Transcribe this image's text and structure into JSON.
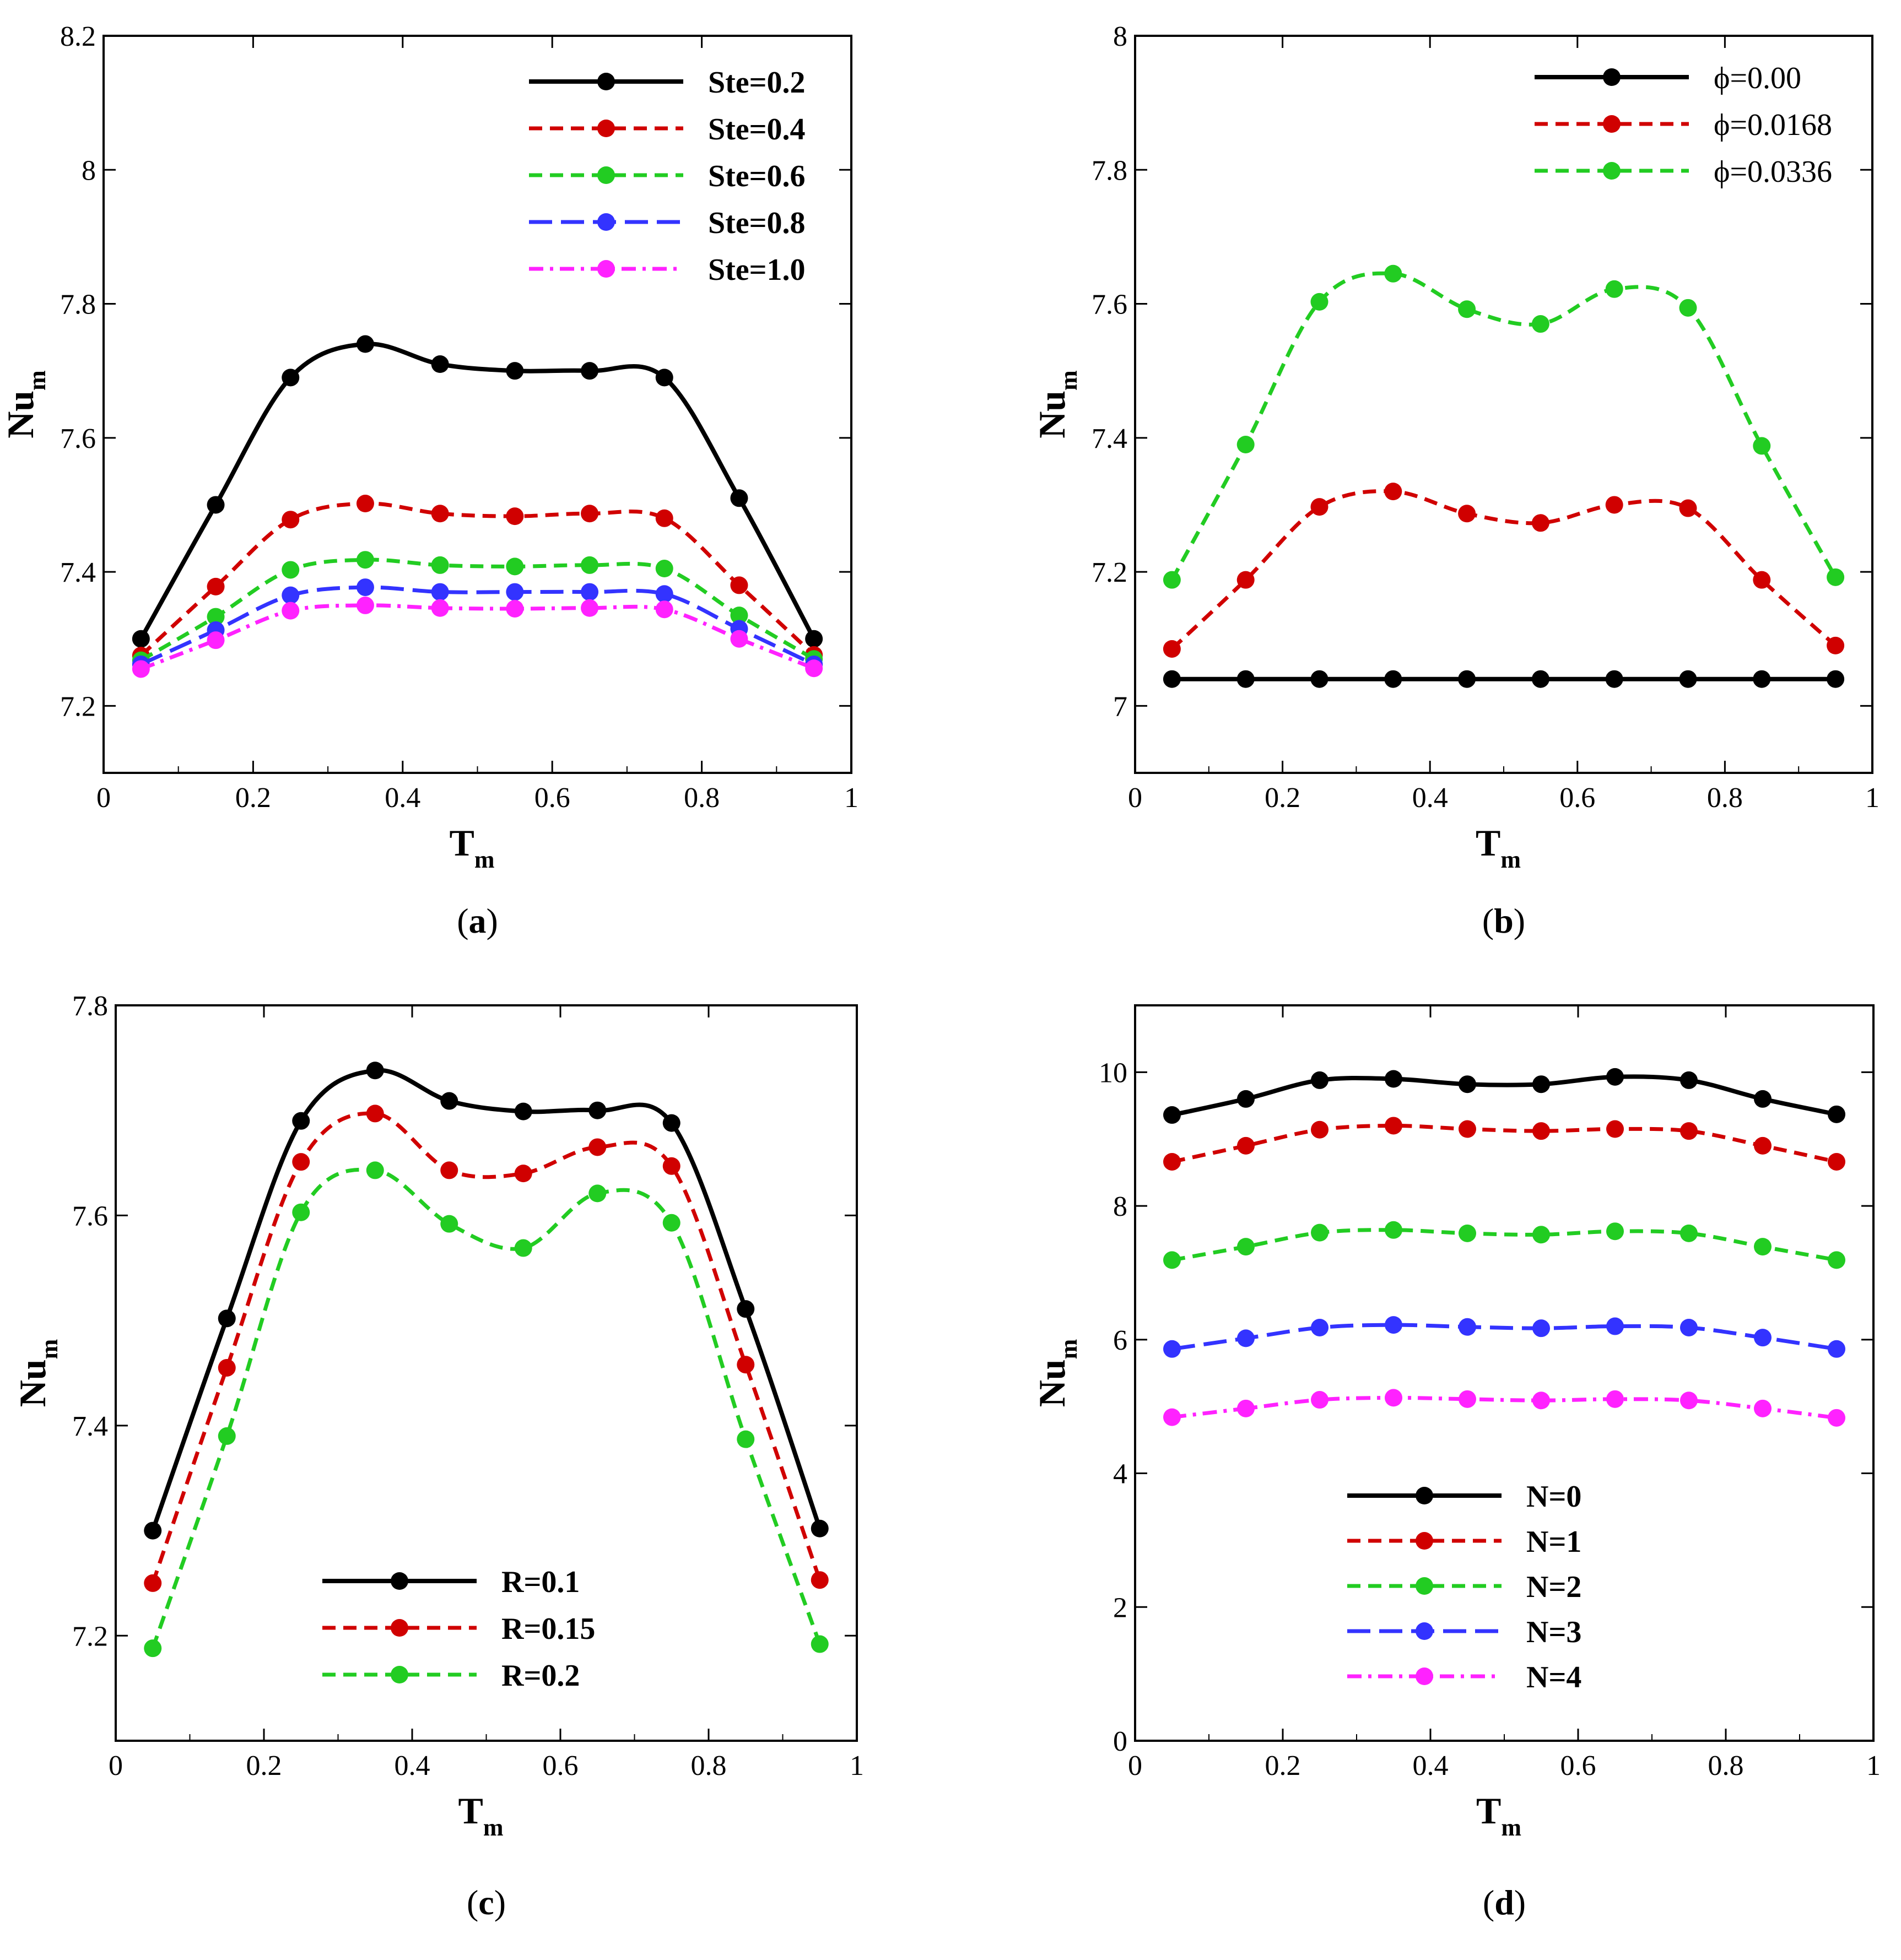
{
  "figure": {
    "colors": {
      "black": "#000000",
      "red": "#d00000",
      "green": "#22cc22",
      "blue": "#3333ff",
      "magenta": "#ff22ff"
    }
  },
  "chart_data": [
    {
      "id": "a",
      "type": "line",
      "caption": {
        "open": "(",
        "letter": "a",
        "close": ")"
      },
      "xlabel": "T",
      "xlabel_sub": "m",
      "ylabel": "Nu",
      "ylabel_sub": "m",
      "xlim": [
        0,
        1
      ],
      "ylim": [
        7.1,
        8.2
      ],
      "xticks": [
        0,
        0.2,
        0.4,
        0.6,
        0.8,
        1
      ],
      "xtick_labels": [
        "0",
        "0.2",
        "0.4",
        "0.6",
        "0.8",
        "1"
      ],
      "yticks": [
        7.2,
        7.4,
        7.6,
        7.8,
        8,
        8.2
      ],
      "ytick_labels": [
        "7.2",
        "7.4",
        "7.6",
        "7.8",
        "8",
        "8.2"
      ],
      "legend_position": "top-right",
      "x": [
        0.05,
        0.15,
        0.25,
        0.35,
        0.45,
        0.55,
        0.65,
        0.75,
        0.85,
        0.95
      ],
      "series": [
        {
          "name": "Ste=0.2",
          "color": "#000000",
          "dash": "solid",
          "values": [
            7.3,
            7.5,
            7.69,
            7.74,
            7.71,
            7.7,
            7.7,
            7.69,
            7.51,
            7.3
          ]
        },
        {
          "name": "Ste=0.4",
          "color": "#d00000",
          "dash": "dash",
          "values": [
            7.275,
            7.378,
            7.478,
            7.502,
            7.487,
            7.483,
            7.487,
            7.48,
            7.38,
            7.276
          ]
        },
        {
          "name": "Ste=0.6",
          "color": "#22cc22",
          "dash": "dash",
          "values": [
            7.268,
            7.333,
            7.403,
            7.418,
            7.41,
            7.408,
            7.41,
            7.405,
            7.335,
            7.27
          ]
        },
        {
          "name": "Ste=0.8",
          "color": "#3333ff",
          "dash": "longdash",
          "values": [
            7.262,
            7.313,
            7.365,
            7.377,
            7.37,
            7.37,
            7.37,
            7.367,
            7.315,
            7.262
          ]
        },
        {
          "name": "Ste=1.0",
          "color": "#ff22ff",
          "dash": "dashdot",
          "values": [
            7.255,
            7.298,
            7.342,
            7.35,
            7.346,
            7.345,
            7.346,
            7.344,
            7.3,
            7.256
          ]
        }
      ]
    },
    {
      "id": "b",
      "type": "line",
      "caption": {
        "open": "(",
        "letter": "b",
        "close": ")"
      },
      "xlabel": "T",
      "xlabel_sub": "m",
      "ylabel": "Nu",
      "ylabel_sub": "m",
      "xlim": [
        0,
        1
      ],
      "ylim": [
        6.9,
        8
      ],
      "xticks": [
        0,
        0.2,
        0.4,
        0.6,
        0.8,
        1
      ],
      "xtick_labels": [
        "0",
        "0.2",
        "0.4",
        "0.6",
        "0.8",
        "1"
      ],
      "yticks": [
        7,
        7.2,
        7.4,
        7.6,
        7.8,
        8
      ],
      "ytick_labels": [
        "7",
        "7.2",
        "7.4",
        "7.6",
        "7.8",
        "8"
      ],
      "legend_position": "top-right",
      "x": [
        0.05,
        0.15,
        0.25,
        0.35,
        0.45,
        0.55,
        0.65,
        0.75,
        0.85,
        0.95
      ],
      "series": [
        {
          "name": "ϕ=0.00",
          "color": "#000000",
          "dash": "solid",
          "values": [
            7.04,
            7.04,
            7.04,
            7.04,
            7.04,
            7.04,
            7.04,
            7.04,
            7.04,
            7.04
          ]
        },
        {
          "name": "ϕ=0.0168",
          "color": "#d00000",
          "dash": "dash",
          "values": [
            7.085,
            7.188,
            7.297,
            7.32,
            7.287,
            7.273,
            7.3,
            7.295,
            7.188,
            7.09
          ]
        },
        {
          "name": "ϕ=0.0336",
          "color": "#22cc22",
          "dash": "dash",
          "values": [
            7.188,
            7.39,
            7.603,
            7.645,
            7.592,
            7.57,
            7.622,
            7.594,
            7.388,
            7.192
          ]
        }
      ]
    },
    {
      "id": "c",
      "type": "line",
      "caption": {
        "open": "(",
        "letter": "c",
        "close": ")"
      },
      "xlabel": "T",
      "xlabel_sub": "m",
      "ylabel": "Nu",
      "ylabel_sub": "m",
      "xlim": [
        0,
        1
      ],
      "ylim": [
        7.1,
        7.8
      ],
      "xticks": [
        0,
        0.2,
        0.4,
        0.6,
        0.8,
        1
      ],
      "xtick_labels": [
        "0",
        "0.2",
        "0.4",
        "0.6",
        "0.8",
        "1"
      ],
      "yticks": [
        7.2,
        7.4,
        7.6,
        7.8
      ],
      "ytick_labels": [
        "7.2",
        "7.4",
        "7.6",
        "7.8"
      ],
      "legend_position": "bottom-center",
      "x": [
        0.05,
        0.15,
        0.25,
        0.35,
        0.45,
        0.55,
        0.65,
        0.75,
        0.85,
        0.95
      ],
      "series": [
        {
          "name": "R=0.1",
          "color": "#000000",
          "dash": "solid",
          "values": [
            7.3,
            7.502,
            7.69,
            7.738,
            7.709,
            7.699,
            7.7,
            7.688,
            7.511,
            7.302
          ]
        },
        {
          "name": "R=0.15",
          "color": "#d00000",
          "dash": "dash",
          "values": [
            7.25,
            7.455,
            7.651,
            7.697,
            7.643,
            7.64,
            7.665,
            7.647,
            7.458,
            7.253
          ]
        },
        {
          "name": "R=0.2",
          "color": "#22cc22",
          "dash": "dash",
          "values": [
            7.188,
            7.39,
            7.603,
            7.643,
            7.592,
            7.569,
            7.621,
            7.593,
            7.387,
            7.192
          ]
        }
      ]
    },
    {
      "id": "d",
      "type": "line",
      "caption": {
        "open": "(",
        "letter": "d",
        "close": ")"
      },
      "xlabel": "T",
      "xlabel_sub": "m",
      "ylabel": "Nu",
      "ylabel_sub": "m",
      "xlim": [
        0,
        1
      ],
      "ylim": [
        0,
        11
      ],
      "xticks": [
        0,
        0.2,
        0.4,
        0.6,
        0.8,
        1
      ],
      "xtick_labels": [
        "0",
        "0.2",
        "0.4",
        "0.6",
        "0.8",
        "1"
      ],
      "yticks": [
        0,
        2,
        4,
        6,
        8,
        10
      ],
      "ytick_labels": [
        "0",
        "2",
        "4",
        "6",
        "8",
        "10"
      ],
      "legend_position": "bottom-center",
      "x": [
        0.05,
        0.15,
        0.25,
        0.35,
        0.45,
        0.55,
        0.65,
        0.75,
        0.85,
        0.95
      ],
      "series": [
        {
          "name": "N=0",
          "color": "#000000",
          "dash": "solid",
          "values": [
            9.36,
            9.6,
            9.88,
            9.9,
            9.82,
            9.82,
            9.93,
            9.88,
            9.6,
            9.37
          ]
        },
        {
          "name": "N=1",
          "color": "#d00000",
          "dash": "dash",
          "values": [
            8.66,
            8.9,
            9.14,
            9.2,
            9.15,
            9.12,
            9.15,
            9.12,
            8.9,
            8.66
          ]
        },
        {
          "name": "N=2",
          "color": "#22cc22",
          "dash": "dash",
          "values": [
            7.19,
            7.39,
            7.6,
            7.64,
            7.59,
            7.57,
            7.62,
            7.59,
            7.39,
            7.19
          ]
        },
        {
          "name": "N=3",
          "color": "#3333ff",
          "dash": "longdash",
          "values": [
            5.86,
            6.02,
            6.18,
            6.22,
            6.19,
            6.17,
            6.2,
            6.18,
            6.03,
            5.86
          ]
        },
        {
          "name": "N=4",
          "color": "#ff22ff",
          "dash": "dashdot",
          "values": [
            4.84,
            4.97,
            5.1,
            5.13,
            5.11,
            5.09,
            5.11,
            5.09,
            4.97,
            4.83
          ]
        }
      ]
    }
  ]
}
